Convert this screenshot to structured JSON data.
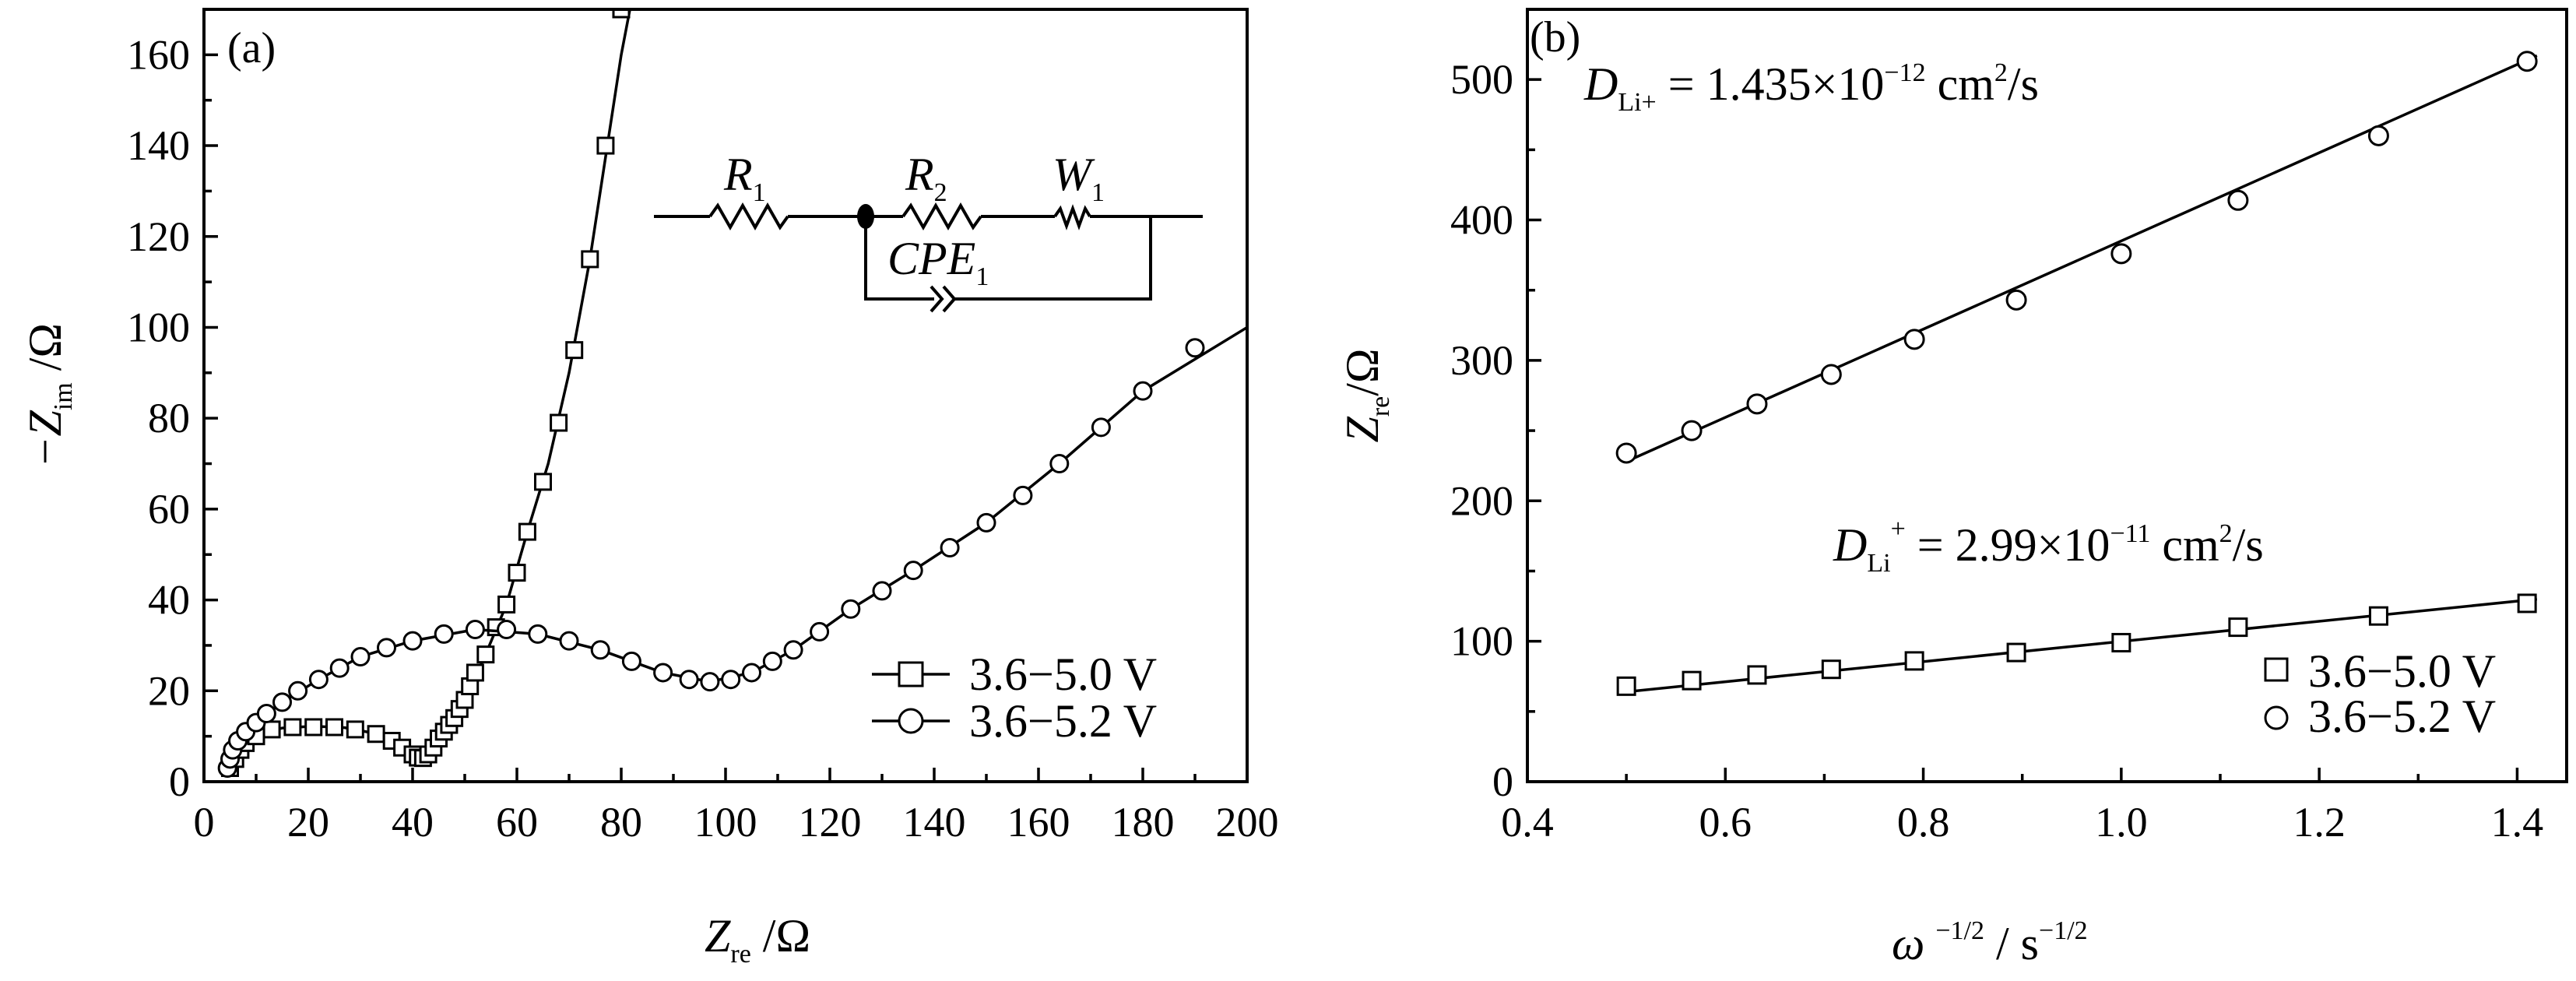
{
  "chart_data": [
    {
      "panel_label": "(a)",
      "type": "scatter",
      "xlabel_main": "Z",
      "xlabel_sub": "re",
      "xlabel_unit": " /Ω",
      "ylabel_prefix": "−Z",
      "ylabel_sub": "im",
      "ylabel_unit": " /Ω",
      "xlim": [
        0,
        200
      ],
      "ylim": [
        0,
        170
      ],
      "xticks": [
        0,
        20,
        40,
        60,
        80,
        100,
        120,
        140,
        160,
        180,
        200
      ],
      "yticks": [
        0,
        20,
        40,
        60,
        80,
        100,
        120,
        140,
        160
      ],
      "legend_position": "bottom-right",
      "series": [
        {
          "name": "3.6−5.0 V",
          "marker": "square",
          "points": [
            [
              5,
              3
            ],
            [
              6,
              5
            ],
            [
              7,
              7
            ],
            [
              8,
              8.5
            ],
            [
              10,
              10
            ],
            [
              13,
              11.5
            ],
            [
              17,
              12
            ],
            [
              21,
              12
            ],
            [
              25,
              12
            ],
            [
              29,
              11.5
            ],
            [
              33,
              10.5
            ],
            [
              36,
              9
            ],
            [
              38,
              7.5
            ],
            [
              40,
              6
            ],
            [
              41,
              5.3
            ],
            [
              42,
              5.2
            ],
            [
              43,
              6
            ],
            [
              44,
              7.5
            ],
            [
              45,
              9.5
            ],
            [
              46,
              11
            ],
            [
              47,
              12.5
            ],
            [
              48,
              14
            ],
            [
              49,
              16
            ],
            [
              50,
              18
            ],
            [
              51,
              21
            ],
            [
              52,
              24
            ],
            [
              54,
              28
            ],
            [
              56,
              34
            ],
            [
              58,
              39
            ],
            [
              60,
              46
            ],
            [
              62,
              55
            ],
            [
              65,
              66
            ],
            [
              68,
              79
            ],
            [
              71,
              95
            ],
            [
              74,
              115
            ],
            [
              77,
              140
            ],
            [
              80,
              170
            ]
          ],
          "line": [
            [
              5,
              2
            ],
            [
              6,
              5
            ],
            [
              8,
              8.5
            ],
            [
              11,
              10.5
            ],
            [
              15,
              11.8
            ],
            [
              21,
              12.2
            ],
            [
              27,
              11.9
            ],
            [
              32,
              10.8
            ],
            [
              36,
              9
            ],
            [
              39,
              6.8
            ],
            [
              41,
              5.3
            ],
            [
              43,
              6
            ],
            [
              46,
              11
            ],
            [
              50,
              18
            ],
            [
              54,
              28
            ],
            [
              58,
              39
            ],
            [
              62,
              55
            ],
            [
              66,
              70
            ],
            [
              70,
              90
            ],
            [
              74,
              115
            ],
            [
              78,
              145
            ],
            [
              80,
              160
            ],
            [
              82,
              172
            ]
          ]
        },
        {
          "name": "3.6−5.2 V",
          "marker": "circle",
          "points": [
            [
              4.5,
              3
            ],
            [
              5,
              5
            ],
            [
              5.5,
              7
            ],
            [
              6.5,
              9
            ],
            [
              8,
              11
            ],
            [
              10,
              13
            ],
            [
              12,
              15
            ],
            [
              15,
              17.5
            ],
            [
              18,
              20
            ],
            [
              22,
              22.5
            ],
            [
              26,
              25
            ],
            [
              30,
              27.5
            ],
            [
              35,
              29.5
            ],
            [
              40,
              31
            ],
            [
              46,
              32.5
            ],
            [
              52,
              33.5
            ],
            [
              58,
              33.5
            ],
            [
              64,
              32.5
            ],
            [
              70,
              31
            ],
            [
              76,
              29
            ],
            [
              82,
              26.5
            ],
            [
              88,
              24
            ],
            [
              93,
              22.5
            ],
            [
              97,
              22
            ],
            [
              101,
              22.5
            ],
            [
              105,
              24
            ],
            [
              109,
              26.5
            ],
            [
              113,
              29
            ],
            [
              118,
              33
            ],
            [
              124,
              38
            ],
            [
              130,
              42
            ],
            [
              136,
              46.5
            ],
            [
              143,
              51.5
            ],
            [
              150,
              57
            ],
            [
              157,
              63
            ],
            [
              164,
              70
            ],
            [
              172,
              78
            ],
            [
              180,
              86
            ],
            [
              190,
              95.5
            ]
          ],
          "line": [
            [
              4.5,
              2
            ],
            [
              5,
              5
            ],
            [
              6.5,
              9
            ],
            [
              10,
              13
            ],
            [
              15,
              17.5
            ],
            [
              22,
              22.5
            ],
            [
              30,
              27.5
            ],
            [
              40,
              31
            ],
            [
              52,
              33.5
            ],
            [
              64,
              32.5
            ],
            [
              76,
              29
            ],
            [
              88,
              24
            ],
            [
              97,
              22
            ],
            [
              105,
              24
            ],
            [
              113,
              29
            ],
            [
              124,
              38
            ],
            [
              136,
              46.5
            ],
            [
              150,
              57
            ],
            [
              164,
              70
            ],
            [
              180,
              86
            ],
            [
              200,
              100
            ]
          ]
        }
      ],
      "circuit": {
        "r1_main": "R",
        "r1_sub": "1",
        "r2_main": "R",
        "r2_sub": "2",
        "w1_main": "W",
        "w1_sub": "1",
        "cpe_main": "CPE",
        "cpe_sub": "1"
      }
    },
    {
      "panel_label": "(b)",
      "type": "scatter",
      "xlabel_symbol": "ω",
      "xlabel_sup1": "−1/2",
      "xlabel_mid": " / s",
      "xlabel_sup2": "−1/2",
      "ylabel_main": "Z",
      "ylabel_sub": "re",
      "ylabel_unit": "/Ω",
      "xlim": [
        0.4,
        1.45
      ],
      "ylim": [
        0,
        550
      ],
      "xticks": [
        0.4,
        0.6,
        0.8,
        1.0,
        1.2,
        1.4
      ],
      "yticks": [
        0,
        100,
        200,
        300,
        400,
        500
      ],
      "legend_position": "bottom-right",
      "series": [
        {
          "name": "3.6−5.0 V",
          "marker": "square",
          "x": [
            0.5,
            0.566,
            0.632,
            0.707,
            0.791,
            0.894,
            1.0,
            1.118,
            1.26,
            1.41
          ],
          "y": [
            68,
            72,
            76,
            80,
            86,
            92,
            99,
            110,
            118,
            127
          ],
          "fit": [
            [
              0.5,
              64
            ],
            [
              1.42,
              130
            ]
          ]
        },
        {
          "name": "3.6−5.2 V",
          "marker": "circle",
          "x": [
            0.5,
            0.566,
            0.632,
            0.707,
            0.791,
            0.894,
            1.0,
            1.118,
            1.26,
            1.41
          ],
          "y": [
            234,
            250,
            269,
            290,
            315,
            343,
            376,
            414,
            460,
            513
          ],
          "fit": [
            [
              0.5,
              228
            ],
            [
              1.42,
              517
            ]
          ]
        }
      ],
      "annotations": [
        {
          "main": "D",
          "sub": "Li+",
          "text": " = 1.435×10",
          "sup": "−12",
          "unit_a": " cm",
          "unit_sup": "2",
          "unit_b": "/s"
        },
        {
          "main": "D",
          "sub": "Li",
          "sup_after_sub": "+",
          "text": " = 2.99×10",
          "sup": "−11",
          "unit_a": " cm",
          "unit_sup": "2",
          "unit_b": "/s"
        }
      ]
    }
  ]
}
